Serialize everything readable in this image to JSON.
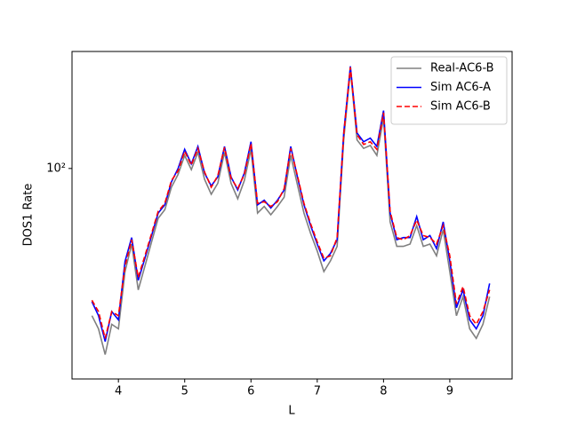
{
  "chart_data": {
    "type": "line",
    "xlabel": "L",
    "ylabel": "DOS1 Rate",
    "x": [
      3.6,
      3.7,
      3.8,
      3.9,
      4.0,
      4.1,
      4.2,
      4.3,
      4.4,
      4.5,
      4.6,
      4.7,
      4.8,
      4.9,
      5.0,
      5.1,
      5.2,
      5.3,
      5.4,
      5.5,
      5.6,
      5.7,
      5.8,
      5.9,
      6.0,
      6.1,
      6.2,
      6.3,
      6.4,
      6.5,
      6.6,
      6.7,
      6.8,
      6.9,
      7.0,
      7.1,
      7.2,
      7.3,
      7.4,
      7.5,
      7.6,
      7.7,
      7.8,
      7.9,
      8.0,
      8.1,
      8.2,
      8.3,
      8.4,
      8.5,
      8.6,
      8.7,
      8.8,
      8.9,
      9.0,
      9.1,
      9.2,
      9.3,
      9.4,
      9.5,
      9.6
    ],
    "series": [
      {
        "name": "Real-AC6-B",
        "color": "#808080",
        "linestyle": "solid",
        "values": [
          28,
          25,
          20,
          26,
          25,
          41,
          52,
          35,
          43,
          53,
          65,
          70,
          85,
          95,
          112,
          99,
          115,
          91,
          80,
          88,
          115,
          88,
          77,
          90,
          118,
          68,
          72,
          67,
          72,
          78,
          112,
          87,
          68,
          57,
          49,
          41,
          45,
          51,
          128,
          235,
          128,
          119,
          122,
          112,
          155,
          63,
          51,
          51,
          52,
          61,
          51,
          52,
          47,
          59,
          41,
          28,
          33,
          25,
          23,
          26,
          33
        ],
        "linestyle_label": null
      },
      {
        "name": "Sim AC6-A",
        "color": "#0000ff",
        "linestyle": "solid",
        "values": [
          31.6,
          28,
          22.4,
          29,
          27,
          44.7,
          55,
          38,
          46,
          56,
          68,
          73,
          89,
          100,
          118,
          104,
          121,
          96,
          86,
          93,
          121,
          93,
          83,
          96,
          126,
          73,
          76,
          71,
          76,
          83,
          121,
          93,
          73,
          61,
          52,
          45,
          48,
          54,
          136,
          242,
          136,
          126,
          130,
          121,
          165,
          68,
          54,
          55,
          55,
          66,
          54,
          56,
          50,
          63,
          45,
          30,
          35,
          27,
          25,
          28,
          37
        ]
      },
      {
        "name": "Sim AC6-B",
        "color": "#ff0000",
        "linestyle": "dashed",
        "values": [
          32,
          29,
          23,
          29,
          28,
          43,
          54,
          39,
          47,
          57,
          69,
          74,
          90,
          98,
          116,
          103,
          119,
          97,
          85,
          94,
          120,
          92,
          84,
          95,
          124,
          74,
          75,
          72,
          75,
          84,
          119,
          94,
          74,
          62,
          53,
          46,
          47,
          55,
          134,
          240,
          134,
          123,
          126,
          118,
          162,
          69,
          55,
          54,
          56,
          64,
          56,
          55,
          52,
          61,
          47,
          31,
          36,
          28,
          26,
          29,
          35
        ]
      }
    ],
    "xlim": [
      3.3,
      9.94
    ],
    "xticks": [
      4,
      5,
      6,
      7,
      8,
      9
    ],
    "ylim": [
      16.2,
      275
    ],
    "yticks": [
      {
        "value": 100,
        "label": "10²"
      }
    ],
    "log_y": true,
    "grid": false,
    "legend": "upper right"
  }
}
